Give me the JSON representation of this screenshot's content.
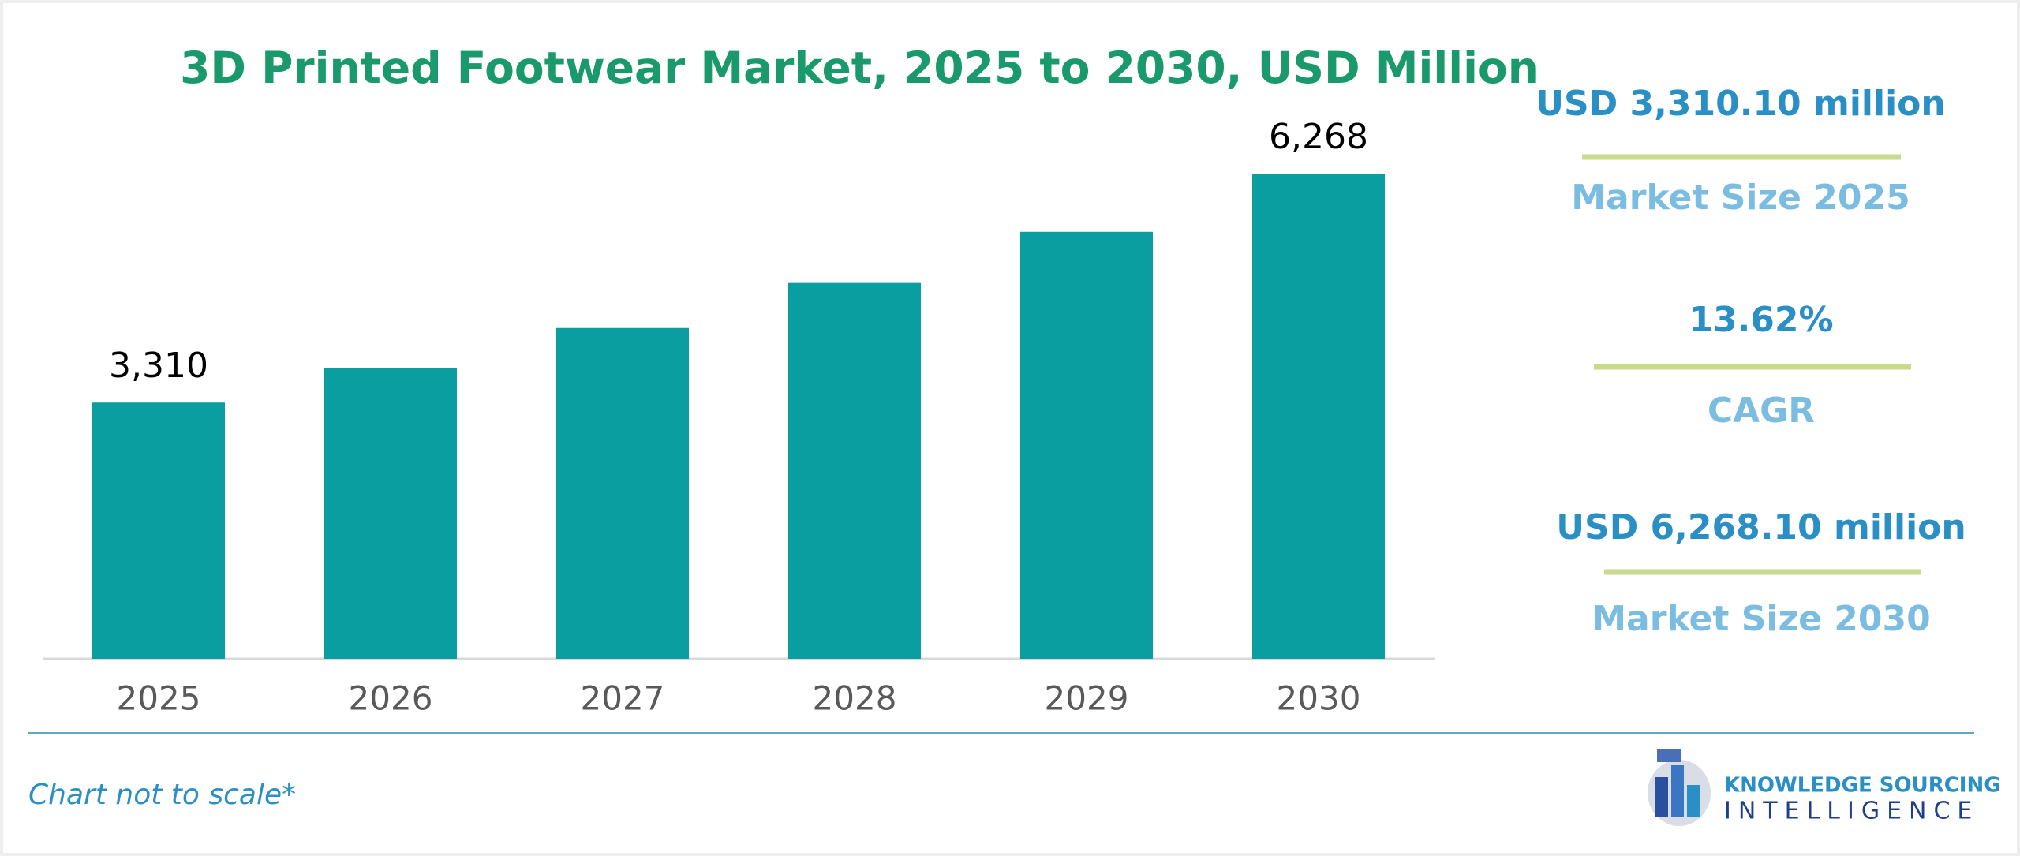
{
  "chart_data": {
    "type": "bar",
    "title": "3D Printed Footwear Market, 2025 to 2030, USD Million",
    "categories": [
      "2025",
      "2026",
      "2027",
      "2028",
      "2029",
      "2030"
    ],
    "values": [
      3310,
      3761,
      4273,
      4855,
      5516,
      6268
    ],
    "value_labels": [
      "3,310",
      null,
      null,
      null,
      null,
      "6,268"
    ],
    "color": "#0a9ea0"
  },
  "stats": [
    {
      "value": "USD 3,310.10 million",
      "label": "Market Size 2025"
    },
    {
      "value": "13.62%",
      "label": "CAGR"
    },
    {
      "value": "USD 6,268.10 million",
      "label": "Market Size 2030"
    }
  ],
  "footer": {
    "note": "Chart not to scale*",
    "logo_line1": "KNOWLEDGE SOURCING",
    "logo_line2": "INTELLIGENCE"
  }
}
